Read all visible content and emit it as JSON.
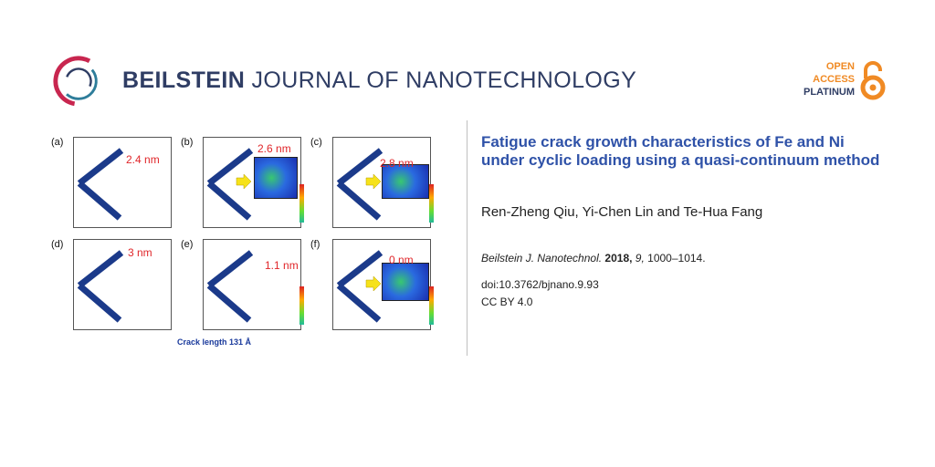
{
  "header": {
    "journal_bold": "BEILSTEIN",
    "journal_rest": " JOURNAL OF NANOTECHNOLOGY",
    "open_access": [
      "OPEN",
      "ACCESS",
      "PLATINUM"
    ]
  },
  "figure": {
    "panels": [
      {
        "label": "(a)",
        "measure": "2.4 nm"
      },
      {
        "label": "(b)",
        "measure": "2.6 nm"
      },
      {
        "label": "(c)",
        "measure": "2.8 nm"
      },
      {
        "label": "(d)",
        "measure": "3 nm"
      },
      {
        "label": "(e)",
        "measure": "1.1 nm"
      },
      {
        "label": "(f)",
        "measure": "0 nm"
      }
    ],
    "caption": "Crack length 131 Å"
  },
  "article": {
    "title": "Fatigue crack growth characteristics of Fe and Ni under cyclic loading using a quasi-continuum method",
    "authors": "Ren-Zheng Qiu, Yi-Chen Lin and Te-Hua Fang",
    "journal_abbrev": "Beilstein J. Nanotechnol.",
    "year": "2018,",
    "volume": "9,",
    "pages": "1000–1014.",
    "doi": "doi:10.3762/bjnano.9.93",
    "license": "CC BY 4.0"
  },
  "colors": {
    "navy": "#2f3d64",
    "title_blue": "#2f52a8",
    "orange": "#f08a24",
    "measure_red": "#e0262a"
  }
}
